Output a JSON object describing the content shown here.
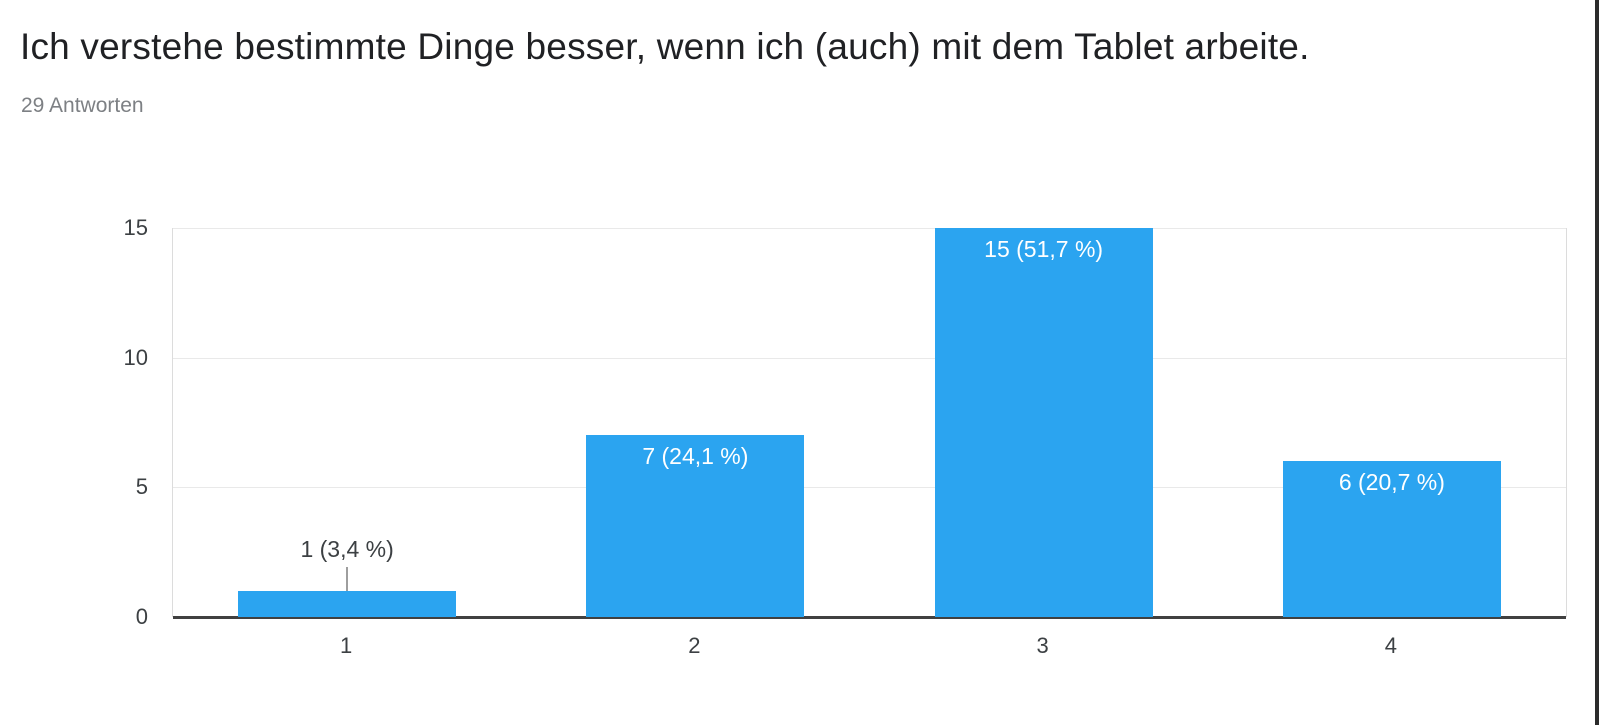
{
  "header": {
    "title": "Ich verstehe bestimmte Dinge besser, wenn ich (auch) mit dem Tablet arbeite.",
    "subtitle": "29 Antworten"
  },
  "chart_data": {
    "type": "bar",
    "title": "Ich verstehe bestimmte Dinge besser, wenn ich (auch) mit dem Tablet arbeite.",
    "subtitle": "29 Antworten",
    "total_responses": "29",
    "categories": [
      "1",
      "2",
      "3",
      "4"
    ],
    "values": [
      1,
      7,
      15,
      6
    ],
    "bar_labels": [
      "1 (3,4 %)",
      "7 (24,1 %)",
      "15 (51,7 %)",
      "6 (20,7 %)"
    ],
    "percentages": [
      "3,4 %",
      "24,1 %",
      "51,7 %",
      "20,7 %"
    ],
    "xlabel": "",
    "ylabel": "",
    "ylim": [
      0,
      15
    ],
    "yticks": [
      0,
      5,
      10,
      15
    ],
    "grid": true,
    "legend": false,
    "colors": {
      "bar": "#2ba4f0",
      "label_inside": "#ffffff",
      "label_outside": "#3c4043",
      "gridline": "#e9e9e9",
      "axis_line": "#404040",
      "tick_text": "#3c4043",
      "title_text": "#202124",
      "subtitle_text": "#7d8084"
    }
  }
}
